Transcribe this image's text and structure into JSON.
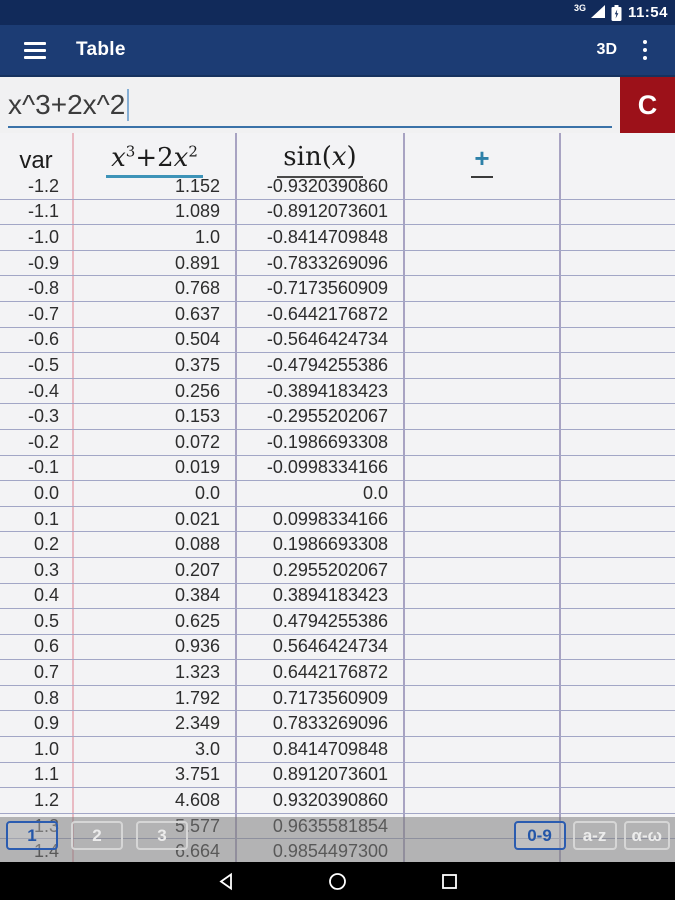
{
  "status_bar": {
    "network": "3G",
    "time": "11:54"
  },
  "app_bar": {
    "title": "Table",
    "threed_label": "3D"
  },
  "input_bar": {
    "value": "x^3+2x^2",
    "clear_label": "C"
  },
  "table": {
    "header": {
      "var_label": "var",
      "f1": {
        "x1": "x",
        "e1": "3",
        "op": "+2",
        "x2": "x",
        "e2": "2"
      },
      "f2": {
        "pre": "sin",
        "open": "(",
        "var": "x",
        "close": ")"
      },
      "add_label": "+"
    },
    "columns": [
      "var",
      "x^3+2x^2",
      "sin(x)",
      "+",
      ""
    ],
    "rows": [
      [
        "-1.2",
        "1.152",
        "-0.9320390860"
      ],
      [
        "-1.1",
        "1.089",
        "-0.8912073601"
      ],
      [
        "-1.0",
        "1.0",
        "-0.8414709848"
      ],
      [
        "-0.9",
        "0.891",
        "-0.7833269096"
      ],
      [
        "-0.8",
        "0.768",
        "-0.7173560909"
      ],
      [
        "-0.7",
        "0.637",
        "-0.6442176872"
      ],
      [
        "-0.6",
        "0.504",
        "-0.5646424734"
      ],
      [
        "-0.5",
        "0.375",
        "-0.4794255386"
      ],
      [
        "-0.4",
        "0.256",
        "-0.3894183423"
      ],
      [
        "-0.3",
        "0.153",
        "-0.2955202067"
      ],
      [
        "-0.2",
        "0.072",
        "-0.1986693308"
      ],
      [
        "-0.1",
        "0.019",
        "-0.0998334166"
      ],
      [
        "0.0",
        "0.0",
        "0.0"
      ],
      [
        "0.1",
        "0.021",
        "0.0998334166"
      ],
      [
        "0.2",
        "0.088",
        "0.1986693308"
      ],
      [
        "0.3",
        "0.207",
        "0.2955202067"
      ],
      [
        "0.4",
        "0.384",
        "0.3894183423"
      ],
      [
        "0.5",
        "0.625",
        "0.4794255386"
      ],
      [
        "0.6",
        "0.936",
        "0.5646424734"
      ],
      [
        "0.7",
        "1.323",
        "0.6442176872"
      ],
      [
        "0.8",
        "1.792",
        "0.7173560909"
      ],
      [
        "0.9",
        "2.349",
        "0.7833269096"
      ],
      [
        "1.0",
        "3.0",
        "0.8414709848"
      ],
      [
        "1.1",
        "3.751",
        "0.8912073601"
      ],
      [
        "1.2",
        "4.608",
        "0.9320390860"
      ],
      [
        "1.3",
        "5.577",
        "0.9635581854"
      ],
      [
        "1.4",
        "6.664",
        "0.9854497300"
      ]
    ]
  },
  "pager": {
    "pages": [
      "1",
      "2",
      "3"
    ],
    "active_page": "1",
    "modes": [
      "0-9",
      "a-z",
      "α-ω"
    ],
    "active_mode": "0-9"
  },
  "colors": {
    "status_bar": "#112a5a",
    "app_bar": "#1c3c74",
    "clear_button": "#9c1119",
    "f1_underline": "#3d93b8",
    "plus_accent": "#2d80a8",
    "active_key": "#2b5cb0",
    "row_separator": "#a2a6c6",
    "var_separator": "#e9bac3"
  }
}
